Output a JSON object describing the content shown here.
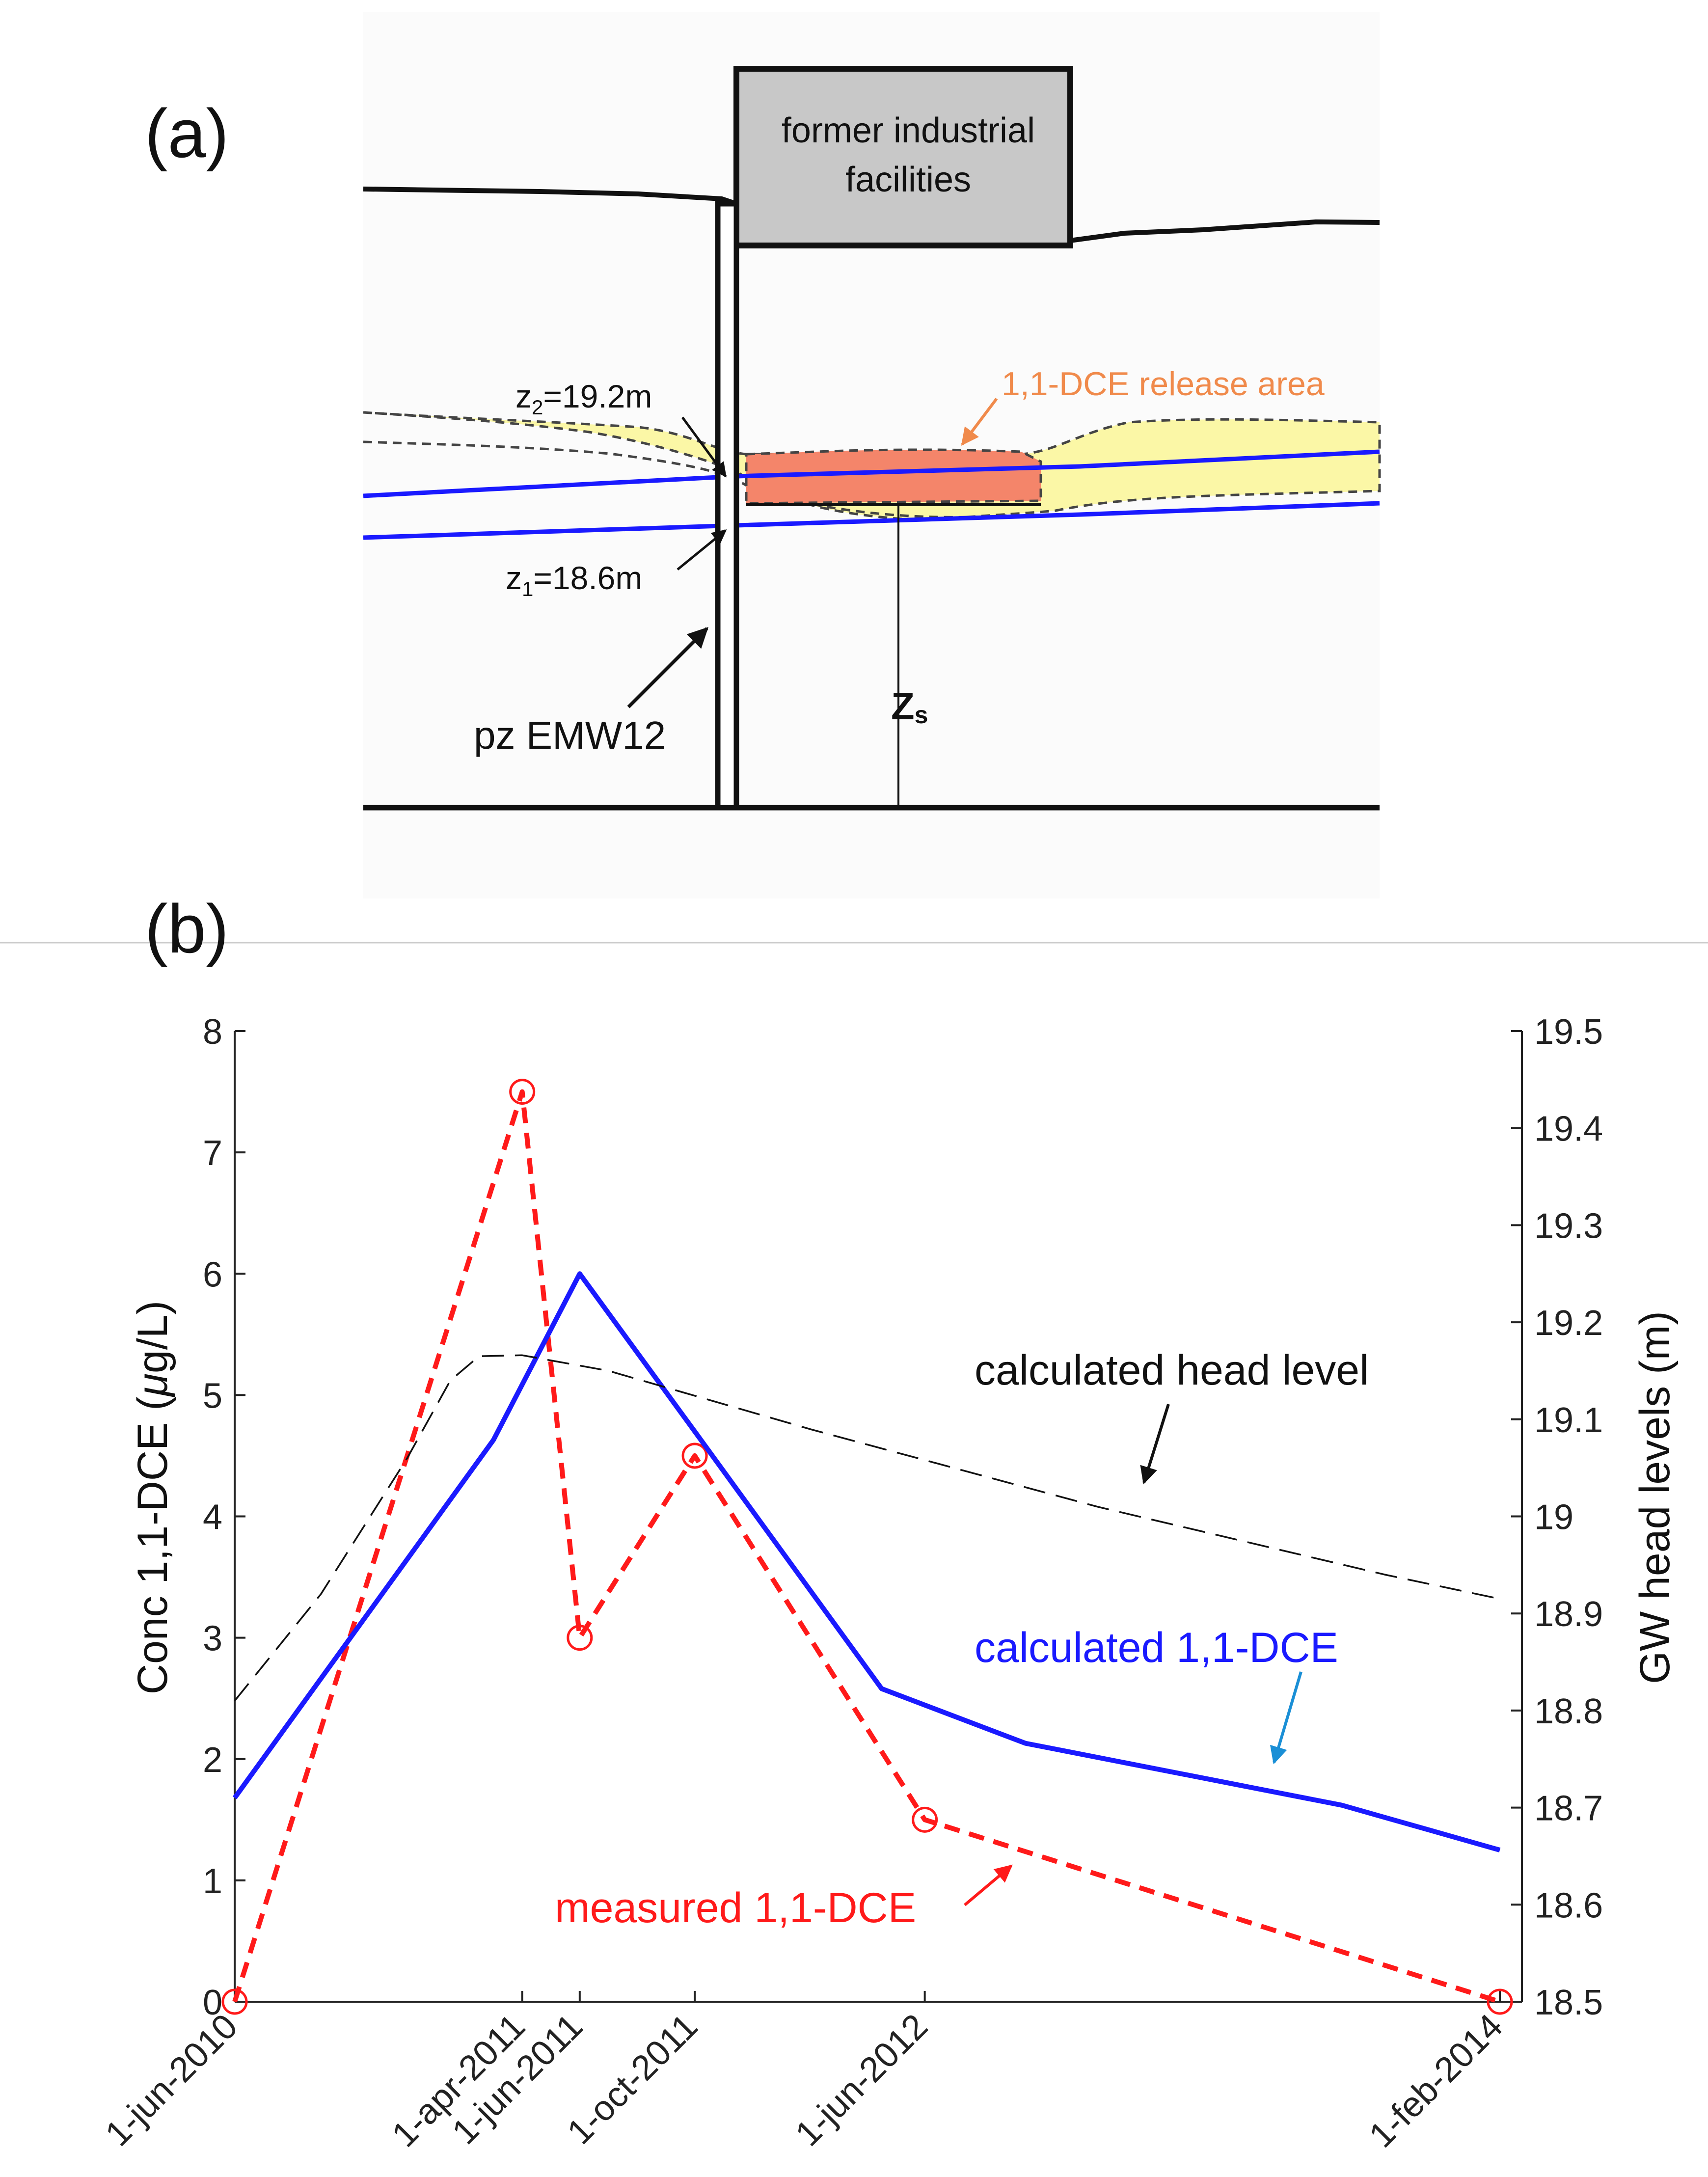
{
  "panel_a": {
    "label": "(a)",
    "facility_label_line1": "former industrial",
    "facility_label_line2": "facilities",
    "release_label": "1,1-DCE release area",
    "z2_var": "z",
    "z2_sub": "2",
    "z2_value": "=19.2m",
    "z1_var": "z",
    "z1_sub": "1",
    "z1_value": "=18.6m",
    "piezometer_label": "pz EMW12",
    "zs_main": "Z",
    "zs_sub": "s",
    "colors": {
      "release_area": "#f4856a",
      "release_label": "#f08a4b",
      "plume": "#fbf7a6",
      "water_table": "#1a1aff"
    }
  },
  "panel_b": {
    "label": "(b)"
  },
  "chart_data": {
    "type": "line",
    "title": "",
    "xlabel": "",
    "ylabel": "Conc 1,1-DCE (μg/L)",
    "ylabel_prefix": "Conc 1,1-DCE (",
    "ylabel_mu": "μ",
    "ylabel_suffix": "g/L)",
    "y2label": "GW head levels (m)",
    "x_unit": "months since 1-jun-2010",
    "xlim": [
      0,
      44
    ],
    "ylim": [
      0,
      8
    ],
    "y2lim": [
      18.5,
      19.5
    ],
    "x_ticks": [
      {
        "x": 0,
        "label": "1-jun-2010"
      },
      {
        "x": 10,
        "label": "1-apr-2011"
      },
      {
        "x": 12,
        "label": "1-jun-2011"
      },
      {
        "x": 16,
        "label": "1-oct-2011"
      },
      {
        "x": 24,
        "label": "1-jun-2012"
      },
      {
        "x": 44,
        "label": "1-feb-2014"
      }
    ],
    "y_ticks": [
      0,
      1,
      2,
      3,
      4,
      5,
      6,
      7,
      8
    ],
    "y2_ticks": [
      "18.5",
      "18.6",
      "18.7",
      "18.8",
      "18.9",
      "19",
      "19.1",
      "19.2",
      "19.3",
      "19.4",
      "19.5"
    ],
    "series": [
      {
        "name": "measured 1,1-DCE",
        "axis": "left",
        "color": "#ff1a1a",
        "style": "dashed-markers",
        "x": [
          0,
          10,
          12,
          16,
          24,
          44
        ],
        "y": [
          0,
          7.5,
          3.0,
          4.5,
          1.5,
          0
        ]
      },
      {
        "name": "calculated 1,1-DCE",
        "axis": "left",
        "color": "#1a1aff",
        "style": "solid",
        "x": [
          0,
          9,
          12,
          16,
          22.5,
          27.5,
          38.5,
          44
        ],
        "y": [
          1.68,
          4.63,
          6.0,
          4.7,
          2.58,
          2.13,
          1.62,
          1.25
        ]
      },
      {
        "name": "calculated head level",
        "axis": "right",
        "color": "#111111",
        "style": "dashed-thin",
        "x": [
          0,
          3,
          6,
          7.5,
          8.5,
          10,
          13,
          20,
          30,
          40,
          44
        ],
        "y": [
          18.81,
          18.92,
          19.06,
          19.14,
          19.165,
          19.166,
          19.15,
          19.09,
          19.01,
          18.94,
          18.915
        ]
      }
    ],
    "annotations": [
      {
        "text": "calculated head level",
        "color": "#111111"
      },
      {
        "text": "calculated 1,1-DCE",
        "color": "#1a1aff"
      },
      {
        "text": "measured 1,1-DCE",
        "color": "#ff1a1a"
      }
    ],
    "legend": "none",
    "grid": false
  }
}
